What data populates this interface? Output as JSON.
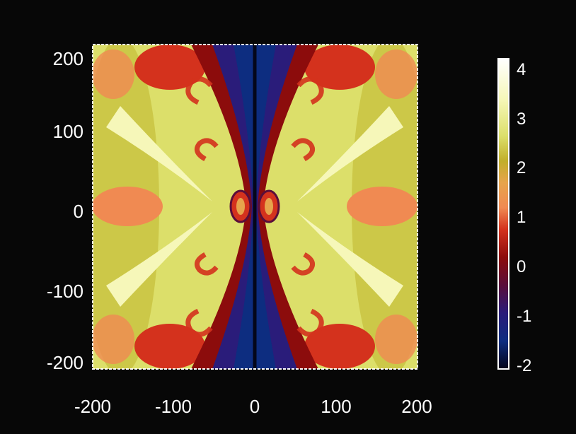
{
  "chart_data": {
    "type": "heatmap",
    "title": "",
    "xlabel": "",
    "ylabel": "",
    "xlim": [
      -200,
      200
    ],
    "ylim": [
      -200,
      200
    ],
    "x_ticks": [
      "-200",
      "-100",
      "0",
      "100",
      "200"
    ],
    "y_ticks": [
      "200",
      "100",
      "0",
      "-100",
      "-200"
    ],
    "grid": false,
    "colorbar": {
      "range": [
        -2,
        4.3
      ],
      "ticks": [
        "4",
        "3",
        "2",
        "1",
        "0",
        "-1",
        "-2"
      ],
      "colormap": [
        "#04061a",
        "#0d2d80",
        "#2a1c7a",
        "#5a0e3a",
        "#8c0c0c",
        "#d4321d",
        "#f08a52",
        "#e7a44c",
        "#c1ae2b",
        "#dcdf6a",
        "#f6f7b9",
        "#ffffff"
      ]
    },
    "description_values": {
      "field_min": -2,
      "field_max": 4.3,
      "symmetry": "four-fold (mirror about x=0 and y=0)",
      "low_region": "vertical hourglass band centered on x=0, narrowest at y=0",
      "high_region": "bright lobes near x=±150, y=±80 and corners"
    }
  },
  "colors": {
    "background": "#070707",
    "axis": "#ffffff",
    "text": "#ffffff"
  }
}
